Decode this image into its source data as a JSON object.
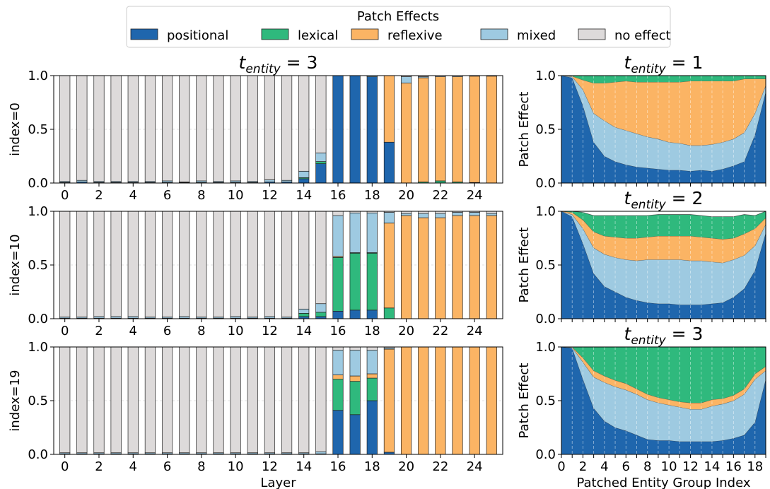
{
  "legend": {
    "title": "Patch Effects",
    "items": [
      {
        "label": "positional",
        "color": "#1f66ad"
      },
      {
        "label": "lexical",
        "color": "#2fb97d"
      },
      {
        "label": "reflexive",
        "color": "#fbb464"
      },
      {
        "label": "mixed",
        "color": "#9ecae1"
      },
      {
        "label": "no effect",
        "color": "#dddada"
      }
    ]
  },
  "stack_order": [
    "positional",
    "lexical",
    "reflexive",
    "mixed",
    "no effect"
  ],
  "chart_data": [
    {
      "type": "bar",
      "stacked": true,
      "title_base": "t",
      "title_sub": "entity",
      "title_rhs": " = 3",
      "ylabel": "index=0",
      "xlabel": "",
      "ylim": [
        0,
        1
      ],
      "yticks": [
        "0.0",
        "0.5",
        "1.0"
      ],
      "xticks": [
        "0",
        "2",
        "4",
        "6",
        "8",
        "10",
        "12",
        "14",
        "16",
        "18",
        "20",
        "22",
        "24"
      ],
      "grid": true,
      "categories": [
        "0",
        "1",
        "2",
        "3",
        "4",
        "5",
        "6",
        "7",
        "8",
        "9",
        "10",
        "11",
        "12",
        "13",
        "14",
        "15",
        "16",
        "17",
        "18",
        "19",
        "20",
        "21",
        "22",
        "23",
        "24",
        "25"
      ],
      "series": [
        {
          "name": "positional",
          "values": [
            0.005,
            0.01,
            0.005,
            0.005,
            0.005,
            0.005,
            0.005,
            0.005,
            0.005,
            0.005,
            0.005,
            0.005,
            0.01,
            0.01,
            0.04,
            0.18,
            1.0,
            1.0,
            0.99,
            0.38,
            0.0,
            0.0,
            0.0,
            0.0,
            0.0,
            0.0
          ]
        },
        {
          "name": "lexical",
          "values": [
            0,
            0,
            0,
            0,
            0,
            0,
            0,
            0,
            0,
            0,
            0,
            0,
            0,
            0,
            0.01,
            0.02,
            0,
            0,
            0,
            0,
            0.0,
            0.01,
            0.02,
            0.01,
            0.005,
            0.0
          ]
        },
        {
          "name": "reflexive",
          "values": [
            0,
            0,
            0,
            0,
            0,
            0,
            0,
            0,
            0,
            0,
            0,
            0,
            0,
            0,
            0,
            0,
            0,
            0,
            0,
            0.62,
            0.93,
            0.97,
            0.97,
            0.98,
            0.99,
            0.995
          ]
        },
        {
          "name": "mixed",
          "values": [
            0.01,
            0.015,
            0.01,
            0.01,
            0.01,
            0.01,
            0.015,
            0.005,
            0.015,
            0.01,
            0.015,
            0.01,
            0.02,
            0.015,
            0.06,
            0.08,
            0,
            0,
            0.01,
            0,
            0.06,
            0.01,
            0.0,
            0.0,
            0.0,
            0.0
          ]
        }
      ]
    },
    {
      "type": "bar",
      "stacked": true,
      "ylabel": "index=10",
      "xlabel": "",
      "ylim": [
        0,
        1
      ],
      "yticks": [
        "0.0",
        "0.5",
        "1.0"
      ],
      "xticks": [
        "0",
        "2",
        "4",
        "6",
        "8",
        "10",
        "12",
        "14",
        "16",
        "18",
        "20",
        "22",
        "24"
      ],
      "grid": true,
      "categories": [
        "0",
        "1",
        "2",
        "3",
        "4",
        "5",
        "6",
        "7",
        "8",
        "9",
        "10",
        "11",
        "12",
        "13",
        "14",
        "15",
        "16",
        "17",
        "18",
        "19",
        "20",
        "21",
        "22",
        "23",
        "24",
        "25"
      ],
      "series": [
        {
          "name": "positional",
          "values": [
            0.005,
            0.005,
            0.005,
            0.005,
            0.005,
            0.005,
            0.005,
            0.005,
            0.005,
            0.005,
            0.005,
            0.005,
            0.005,
            0.005,
            0.02,
            0.02,
            0.07,
            0.08,
            0.08,
            0,
            0,
            0,
            0,
            0,
            0,
            0
          ]
        },
        {
          "name": "lexical",
          "values": [
            0,
            0,
            0,
            0,
            0,
            0,
            0,
            0,
            0,
            0,
            0,
            0,
            0,
            0,
            0.03,
            0.04,
            0.5,
            0.53,
            0.53,
            0.1,
            0,
            0,
            0,
            0,
            0,
            0
          ]
        },
        {
          "name": "reflexive",
          "values": [
            0,
            0,
            0,
            0,
            0,
            0,
            0,
            0,
            0,
            0,
            0,
            0,
            0,
            0,
            0,
            0,
            0.01,
            0.005,
            0.005,
            0.79,
            0.96,
            0.94,
            0.94,
            0.96,
            0.96,
            0.96
          ]
        },
        {
          "name": "mixed",
          "values": [
            0.01,
            0.01,
            0.015,
            0.015,
            0.015,
            0.01,
            0.01,
            0.015,
            0.01,
            0.01,
            0.015,
            0.01,
            0.015,
            0.01,
            0.04,
            0.08,
            0.38,
            0.37,
            0.37,
            0.1,
            0.02,
            0.04,
            0.04,
            0.03,
            0.03,
            0.02
          ]
        }
      ]
    },
    {
      "type": "bar",
      "stacked": true,
      "ylabel": "index=19",
      "xlabel": "Layer",
      "ylim": [
        0,
        1
      ],
      "yticks": [
        "0.0",
        "0.5",
        "1.0"
      ],
      "xticks": [
        "0",
        "2",
        "4",
        "6",
        "8",
        "10",
        "12",
        "14",
        "16",
        "18",
        "20",
        "22",
        "24"
      ],
      "grid": true,
      "categories": [
        "0",
        "1",
        "2",
        "3",
        "4",
        "5",
        "6",
        "7",
        "8",
        "9",
        "10",
        "11",
        "12",
        "13",
        "14",
        "15",
        "16",
        "17",
        "18",
        "19",
        "20",
        "21",
        "22",
        "23",
        "24",
        "25"
      ],
      "series": [
        {
          "name": "positional",
          "values": [
            0.005,
            0.005,
            0.005,
            0.005,
            0.005,
            0.005,
            0.005,
            0.005,
            0.005,
            0.005,
            0.005,
            0.005,
            0.005,
            0.005,
            0.005,
            0.005,
            0.41,
            0.37,
            0.5,
            0.02,
            0,
            0,
            0,
            0,
            0,
            0
          ]
        },
        {
          "name": "lexical",
          "values": [
            0,
            0,
            0,
            0,
            0,
            0,
            0,
            0,
            0,
            0,
            0,
            0,
            0,
            0,
            0,
            0,
            0.29,
            0.31,
            0.21,
            0,
            0,
            0,
            0,
            0,
            0,
            0
          ]
        },
        {
          "name": "reflexive",
          "values": [
            0,
            0,
            0,
            0,
            0,
            0,
            0,
            0,
            0,
            0,
            0,
            0,
            0,
            0,
            0,
            0,
            0.04,
            0.05,
            0.04,
            0.96,
            1.0,
            1.0,
            1.0,
            1.0,
            1.0,
            1.0
          ]
        },
        {
          "name": "mixed",
          "values": [
            0.01,
            0.01,
            0.01,
            0.01,
            0.01,
            0.01,
            0.01,
            0.01,
            0.01,
            0.01,
            0.01,
            0.01,
            0.01,
            0.01,
            0.01,
            0.02,
            0.23,
            0.24,
            0.22,
            0.01,
            0,
            0,
            0,
            0,
            0,
            0
          ]
        }
      ]
    },
    {
      "type": "area",
      "stacked": true,
      "title_base": "t",
      "title_sub": "entity",
      "title_rhs": " = 1",
      "ylabel": "Patch Effect",
      "xlabel": "",
      "ylim": [
        0,
        1
      ],
      "xlim": [
        0,
        19
      ],
      "yticks": [
        "0.0",
        "0.5",
        "1.0"
      ],
      "xticks": [],
      "grid": true,
      "x": [
        0,
        1,
        2,
        3,
        4,
        5,
        6,
        7,
        8,
        9,
        10,
        11,
        12,
        13,
        14,
        15,
        16,
        17,
        18,
        19
      ],
      "series": [
        {
          "name": "positional",
          "values": [
            1.0,
            0.98,
            0.72,
            0.38,
            0.25,
            0.2,
            0.17,
            0.15,
            0.14,
            0.13,
            0.12,
            0.12,
            0.11,
            0.12,
            0.11,
            0.13,
            0.16,
            0.2,
            0.45,
            0.85
          ]
        },
        {
          "name": "mixed",
          "values": [
            0.0,
            0.01,
            0.15,
            0.27,
            0.33,
            0.32,
            0.32,
            0.31,
            0.29,
            0.28,
            0.26,
            0.25,
            0.24,
            0.23,
            0.25,
            0.25,
            0.25,
            0.27,
            0.2,
            0.06
          ]
        },
        {
          "name": "reflexive",
          "values": [
            0.0,
            0.005,
            0.09,
            0.28,
            0.35,
            0.42,
            0.46,
            0.48,
            0.51,
            0.53,
            0.56,
            0.57,
            0.6,
            0.6,
            0.59,
            0.57,
            0.54,
            0.5,
            0.32,
            0.06
          ]
        },
        {
          "name": "lexical",
          "values": [
            0.0,
            0.005,
            0.04,
            0.07,
            0.07,
            0.06,
            0.05,
            0.06,
            0.06,
            0.06,
            0.06,
            0.06,
            0.05,
            0.05,
            0.05,
            0.05,
            0.05,
            0.03,
            0.03,
            0.03
          ]
        }
      ]
    },
    {
      "type": "area",
      "stacked": true,
      "title_base": "t",
      "title_sub": "entity",
      "title_rhs": " = 2",
      "ylabel": "Patch Effect",
      "xlabel": "",
      "ylim": [
        0,
        1
      ],
      "xlim": [
        0,
        19
      ],
      "yticks": [
        "0.0",
        "0.5",
        "1.0"
      ],
      "xticks": [],
      "grid": true,
      "x": [
        0,
        1,
        2,
        3,
        4,
        5,
        6,
        7,
        8,
        9,
        10,
        11,
        12,
        13,
        14,
        15,
        16,
        17,
        18,
        19
      ],
      "series": [
        {
          "name": "positional",
          "values": [
            1.0,
            0.95,
            0.7,
            0.42,
            0.3,
            0.25,
            0.2,
            0.17,
            0.15,
            0.14,
            0.14,
            0.13,
            0.13,
            0.13,
            0.14,
            0.15,
            0.2,
            0.28,
            0.45,
            0.8
          ]
        },
        {
          "name": "mixed",
          "values": [
            0.0,
            0.02,
            0.14,
            0.24,
            0.3,
            0.32,
            0.35,
            0.37,
            0.4,
            0.41,
            0.41,
            0.42,
            0.41,
            0.41,
            0.39,
            0.37,
            0.35,
            0.31,
            0.23,
            0.08
          ]
        },
        {
          "name": "reflexive",
          "values": [
            0.0,
            0.02,
            0.08,
            0.15,
            0.17,
            0.19,
            0.2,
            0.21,
            0.21,
            0.22,
            0.22,
            0.22,
            0.23,
            0.22,
            0.22,
            0.22,
            0.2,
            0.2,
            0.16,
            0.06
          ]
        },
        {
          "name": "lexical",
          "values": [
            0.0,
            0.01,
            0.07,
            0.15,
            0.19,
            0.2,
            0.21,
            0.21,
            0.2,
            0.2,
            0.2,
            0.2,
            0.2,
            0.2,
            0.2,
            0.21,
            0.2,
            0.18,
            0.12,
            0.06
          ]
        }
      ]
    },
    {
      "type": "area",
      "stacked": true,
      "title_base": "t",
      "title_sub": "entity",
      "title_rhs": " = 3",
      "ylabel": "Patch Effect",
      "xlabel": "Patched Entity Group Index",
      "ylim": [
        0,
        1
      ],
      "xlim": [
        0,
        19
      ],
      "yticks": [
        "0.0",
        "0.5",
        "1.0"
      ],
      "xticks": [
        "0",
        "2",
        "4",
        "6",
        "8",
        "10",
        "12",
        "14",
        "16",
        "18"
      ],
      "grid": true,
      "x": [
        0,
        1,
        2,
        3,
        4,
        5,
        6,
        7,
        8,
        9,
        10,
        11,
        12,
        13,
        14,
        15,
        16,
        17,
        18,
        19
      ],
      "series": [
        {
          "name": "positional",
          "values": [
            1.0,
            0.99,
            0.7,
            0.43,
            0.31,
            0.25,
            0.22,
            0.18,
            0.14,
            0.13,
            0.13,
            0.12,
            0.12,
            0.12,
            0.12,
            0.13,
            0.15,
            0.18,
            0.3,
            0.7
          ]
        },
        {
          "name": "mixed",
          "values": [
            0.0,
            0.005,
            0.16,
            0.29,
            0.36,
            0.38,
            0.38,
            0.38,
            0.37,
            0.35,
            0.33,
            0.32,
            0.3,
            0.3,
            0.33,
            0.34,
            0.35,
            0.38,
            0.4,
            0.08
          ]
        },
        {
          "name": "reflexive",
          "values": [
            0.0,
            0.005,
            0.04,
            0.06,
            0.06,
            0.06,
            0.06,
            0.05,
            0.05,
            0.05,
            0.05,
            0.05,
            0.06,
            0.06,
            0.06,
            0.05,
            0.05,
            0.05,
            0.05,
            0.04
          ]
        },
        {
          "name": "lexical",
          "values": [
            0.0,
            0.0,
            0.1,
            0.22,
            0.27,
            0.31,
            0.34,
            0.39,
            0.44,
            0.47,
            0.49,
            0.51,
            0.52,
            0.52,
            0.49,
            0.48,
            0.45,
            0.39,
            0.25,
            0.18
          ]
        }
      ]
    }
  ]
}
